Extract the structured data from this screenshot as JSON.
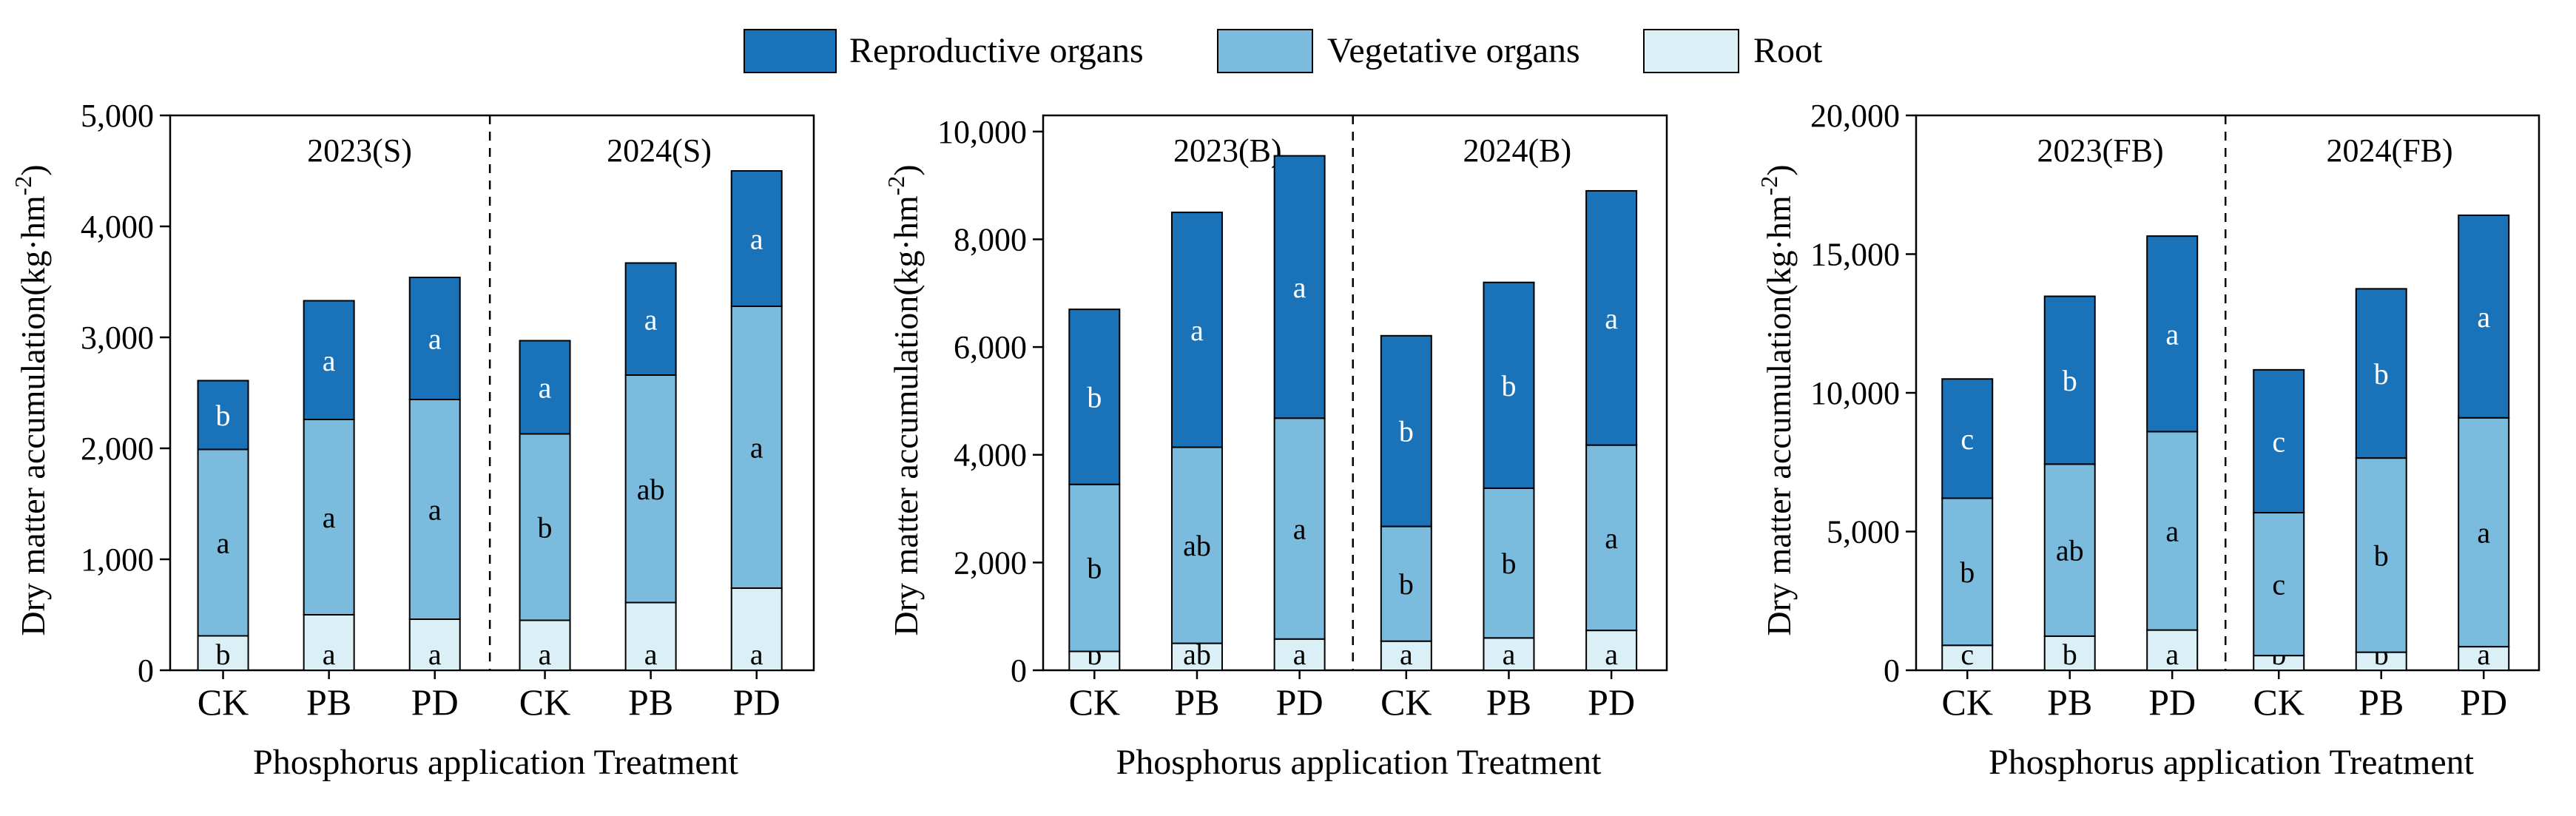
{
  "legend": [
    {
      "label": "Reproductive organs",
      "color": "#1a72b8"
    },
    {
      "label": "Vegetative organs",
      "color": "#7bbcde"
    },
    {
      "label": "Root",
      "color": "#dbf0f6"
    }
  ],
  "chart_data": [
    {
      "type": "bar",
      "stacked": true,
      "ylabel": "Dry matter accumulation(kg·hm",
      "ylabel_sup": "-2",
      "ylabel_end": ")",
      "xlabel": "Phosphorus application Treatment",
      "ylim": [
        0,
        5000
      ],
      "yticks": [
        0,
        1000,
        2000,
        3000,
        4000,
        5000
      ],
      "ytick_labels": [
        "0",
        "1,000",
        "2,000",
        "3,000",
        "4,000",
        "5,000"
      ],
      "groups": [
        "2023(S)",
        "2024(S)"
      ],
      "categories": [
        "CK",
        "PB",
        "PD",
        "CK",
        "PB",
        "PD"
      ],
      "series": [
        {
          "name": "Root",
          "values": [
            310,
            500,
            460,
            450,
            610,
            740
          ],
          "letters": [
            "b",
            "a",
            "a",
            "a",
            "a",
            "a"
          ]
        },
        {
          "name": "Vegetative organs",
          "values": [
            1680,
            1760,
            1980,
            1680,
            2050,
            2540
          ],
          "letters": [
            "a",
            "a",
            "a",
            "b",
            "ab",
            "a"
          ]
        },
        {
          "name": "Reproductive organs",
          "values": [
            620,
            1070,
            1100,
            840,
            1010,
            1220
          ],
          "letters": [
            "b",
            "a",
            "a",
            "a",
            "a",
            "a"
          ]
        }
      ]
    },
    {
      "type": "bar",
      "stacked": true,
      "ylabel": "Dry matter accumulation(kg·hm",
      "ylabel_sup": "-2",
      "ylabel_end": ")",
      "xlabel": "Phosphorus application Treatment",
      "ylim": [
        0,
        10300
      ],
      "yticks": [
        0,
        2000,
        4000,
        6000,
        8000,
        10000
      ],
      "ytick_labels": [
        "0",
        "2,000",
        "4,000",
        "6,000",
        "8,000",
        "10,000"
      ],
      "groups": [
        "2023(B)",
        "2024(B)"
      ],
      "categories": [
        "CK",
        "PB",
        "PD",
        "CK",
        "PB",
        "PD"
      ],
      "series": [
        {
          "name": "Root",
          "values": [
            350,
            500,
            580,
            540,
            600,
            740
          ],
          "letters": [
            "b",
            "ab",
            "a",
            "a",
            "a",
            "a"
          ]
        },
        {
          "name": "Vegetative organs",
          "values": [
            3100,
            3640,
            4100,
            2130,
            2780,
            3440
          ],
          "letters": [
            "b",
            "ab",
            "a",
            "b",
            "b",
            "a"
          ]
        },
        {
          "name": "Reproductive organs",
          "values": [
            3250,
            4360,
            4870,
            3540,
            3820,
            4720
          ],
          "letters": [
            "b",
            "a",
            "a",
            "b",
            "b",
            "a"
          ]
        }
      ]
    },
    {
      "type": "bar",
      "stacked": true,
      "ylabel": "Dry matter accumulation(kg·hm",
      "ylabel_sup": "-2",
      "ylabel_end": ")",
      "xlabel": "Phosphorus application Treatment",
      "ylim": [
        0,
        20000
      ],
      "yticks": [
        0,
        5000,
        10000,
        15000,
        20000
      ],
      "ytick_labels": [
        "0",
        "5,000",
        "10,000",
        "15,000",
        "20,000"
      ],
      "groups": [
        "2023(FB)",
        "2024(FB)"
      ],
      "categories": [
        "CK",
        "PB",
        "PD",
        "CK",
        "PB",
        "PD"
      ],
      "series": [
        {
          "name": "Root",
          "values": [
            900,
            1230,
            1450,
            530,
            650,
            850
          ],
          "letters": [
            "c",
            "b",
            "a",
            "b",
            "b",
            "a"
          ]
        },
        {
          "name": "Vegetative organs",
          "values": [
            5300,
            6200,
            7150,
            5150,
            7000,
            8250
          ],
          "letters": [
            "b",
            "ab",
            "a",
            "c",
            "b",
            "a"
          ]
        },
        {
          "name": "Reproductive organs",
          "values": [
            4300,
            6050,
            7050,
            5150,
            6100,
            7300
          ],
          "letters": [
            "c",
            "b",
            "a",
            "c",
            "b",
            "a"
          ]
        }
      ]
    }
  ]
}
